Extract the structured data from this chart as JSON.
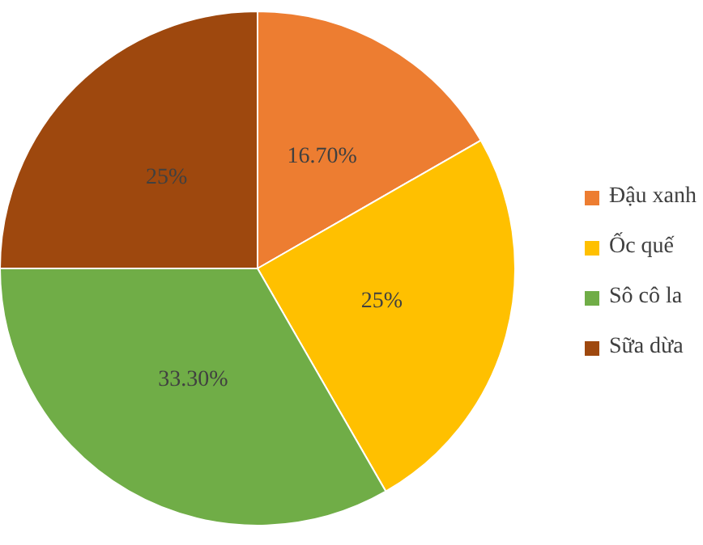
{
  "chart_data": {
    "type": "pie",
    "categories": [
      "Đậu xanh",
      "Ốc quế",
      "Sô cô la",
      "Sữa dừa"
    ],
    "values": [
      16.7,
      25,
      33.3,
      25
    ],
    "colors": [
      "#ed7d31",
      "#ffc000",
      "#70ad47",
      "#9e480e"
    ],
    "value_labels": [
      "16.70%",
      "25%",
      "33.30%",
      "25%"
    ],
    "legend": "right"
  }
}
